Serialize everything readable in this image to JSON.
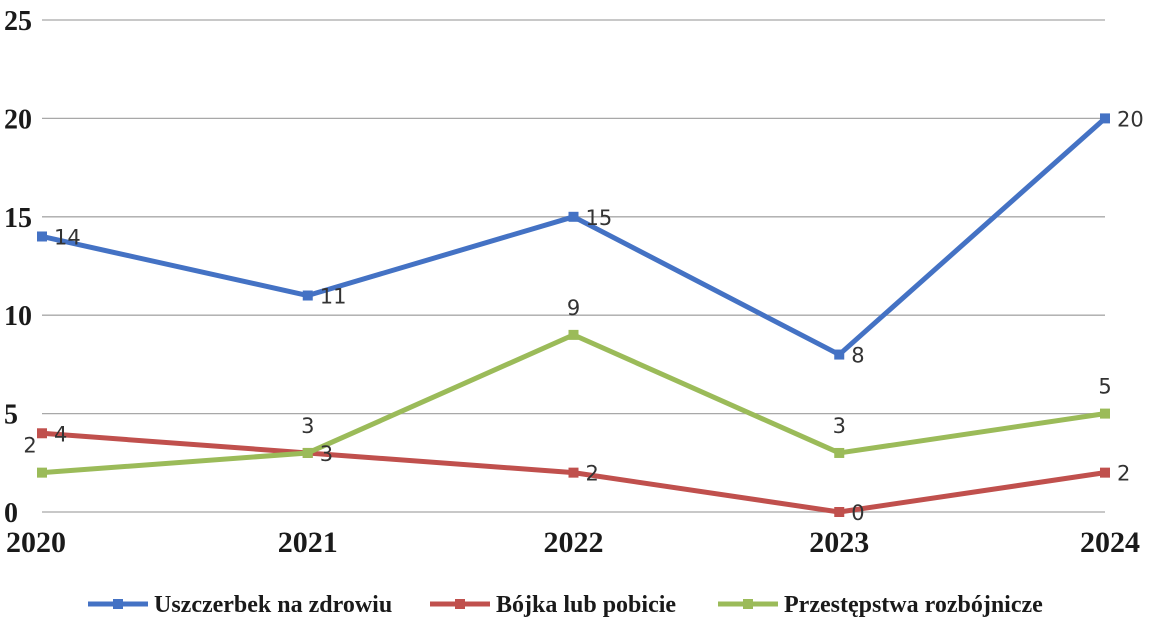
{
  "chart_data": {
    "type": "line",
    "title": "",
    "xlabel": "",
    "ylabel": "",
    "x": [
      "2020",
      "2021",
      "2022",
      "2023",
      "2024"
    ],
    "ylim": [
      0,
      25
    ],
    "yticks": [
      "0",
      "5",
      "10",
      "15",
      "20",
      "25"
    ],
    "grid": true,
    "legend_position": "bottom",
    "series": [
      {
        "name": "Uszczerbek na zdrowiu",
        "values": [
          14,
          11,
          15,
          8,
          20
        ],
        "color": "#4472c4"
      },
      {
        "name": "Bójka lub pobicie",
        "values": [
          4,
          3,
          2,
          0,
          2
        ],
        "color": "#c0504d"
      },
      {
        "name": "Przestępstwa rozbójnicze",
        "values": [
          2,
          3,
          9,
          3,
          5
        ],
        "color": "#9bbb59"
      }
    ]
  }
}
